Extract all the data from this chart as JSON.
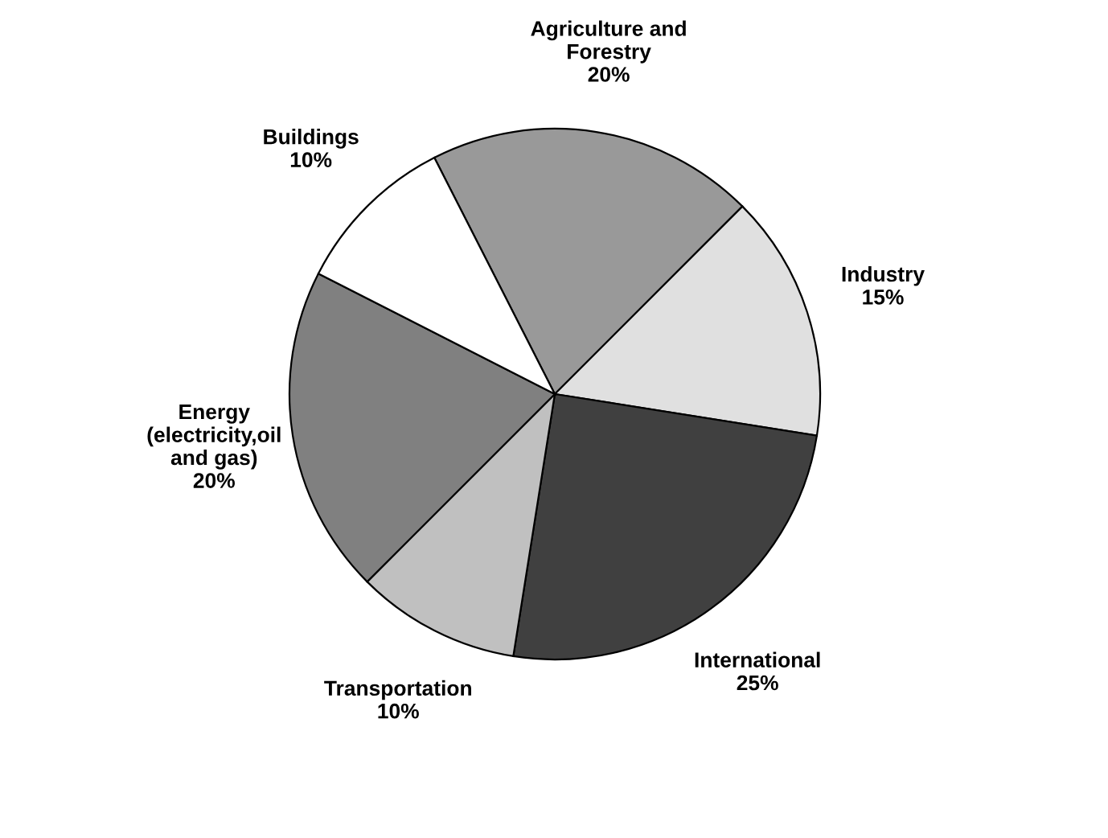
{
  "chart_data": {
    "type": "pie",
    "categories": [
      "Agriculture and\nForestry",
      "Industry",
      "International",
      "Transportation",
      "Energy\n(electricity,oil\nand gas)",
      "Buildings"
    ],
    "values": [
      20,
      15,
      25,
      10,
      20,
      10
    ],
    "value_labels": [
      "20%",
      "15%",
      "25%",
      "10%",
      "20%",
      "10%"
    ],
    "colors": [
      "#999999",
      "#e0e0e0",
      "#404040",
      "#c0c0c0",
      "#808080",
      "#ffffff"
    ],
    "legend": false
  }
}
